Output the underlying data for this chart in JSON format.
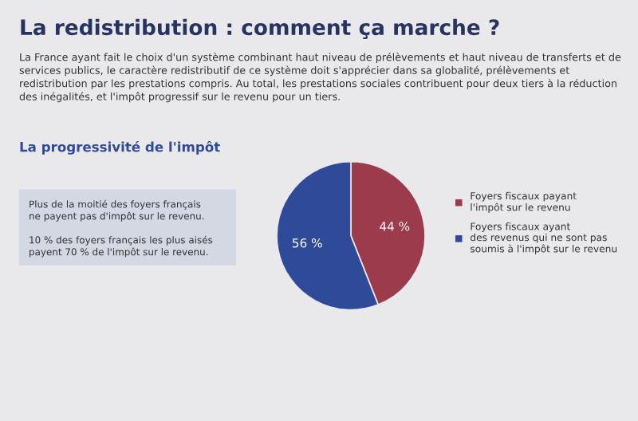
{
  "chart_data": {
    "type": "pie",
    "title": "La redistribution : comment ça marche ?",
    "subtitle": "La France ayant fait le choix d'un système combinant haut niveau de prélèvements et haut niveau de transferts et de services publics, le caractère redistributif de ce système doit s'apprécier dans sa globalité, prélèvements et redistribution par les prestations compris. Au total, les prestations sociales contribuent pour deux tiers à la réduction des inégalités, et l'impôt progressif sur le revenu pour un tiers.",
    "xlabel": "La progressivité de l'impôt",
    "annotations": [
      "Plus de la moitié des foyers français\nne payent pas d'impôt sur le revenu.",
      "10 % des foyers français les plus aisés\npayent 70 % de l'impôt sur le revenu."
    ],
    "categories": [
      "Foyers fiscaux payant\nl'impôt sur le revenu",
      "Foyers fiscaux ayant\ndes revenus qui ne sont pas\nsoumis à l'impôt sur le revenu"
    ],
    "values": [
      44,
      56
    ],
    "colors": [
      "#9b3b4c",
      "#2f4a98"
    ],
    "value_labels": [
      "44 %",
      "56 %"
    ],
    "legend": "right"
  }
}
